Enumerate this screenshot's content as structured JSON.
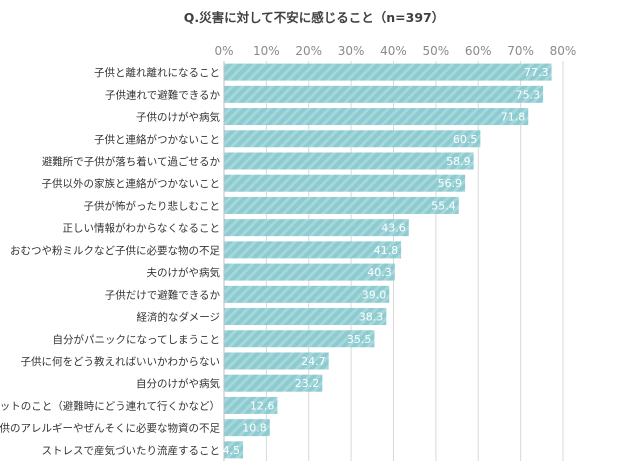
{
  "chart_data": {
    "type": "bar",
    "orientation": "horizontal",
    "title": "Q.災害に対して不安に感じること（n=397）",
    "categories": [
      "子供と離れ離れになること",
      "子供連れで避難できるか",
      "子供のけがや病気",
      "子供と連絡がつかないこと",
      "避難所で子供が落ち着いて過ごせるか",
      "子供以外の家族と連絡がつかないこと",
      "子供が怖がったり悲しむこと",
      "正しい情報がわからなくなること",
      "おむつや粉ミルクなど子供に必要な物の不足",
      "夫のけがや病気",
      "子供だけで避難できるか",
      "経済的なダメージ",
      "自分がパニックになってしまうこと",
      "子供に何をどう教えればいいかわからない",
      "自分のけがや病気",
      "ペットのこと（避難時にどう連れて行くかなど）",
      "子供のアレルギーやぜんそくに必要な物資の不足",
      "ストレスで産気づいたり流産すること"
    ],
    "values": [
      77.3,
      75.3,
      71.8,
      60.5,
      58.9,
      56.9,
      55.4,
      43.6,
      41.8,
      40.3,
      39.0,
      38.3,
      35.5,
      24.7,
      23.2,
      12.6,
      10.8,
      4.5
    ],
    "value_labels": [
      "77.3",
      "75.3",
      "71.8",
      "60.5",
      "58.9",
      "56.9",
      "55.4",
      "43.6",
      "41.8",
      "40.3",
      "39.0",
      "38.3",
      "35.5",
      "24.7",
      "23.2",
      "12.6",
      "10.8",
      "4.5"
    ],
    "xlim": [
      0,
      80
    ],
    "x_ticks": [
      0,
      10,
      20,
      30,
      40,
      50,
      60,
      70,
      80
    ],
    "x_tick_labels": [
      "0%",
      "10%",
      "20%",
      "30%",
      "40%",
      "50%",
      "60%",
      "70%",
      "80%"
    ],
    "xlabel": "",
    "ylabel": "",
    "grid": true,
    "legend": "none",
    "colors": {
      "bar": "#8ccbd0",
      "bar_stripe": "#a6d7db",
      "value_text": "#ffffff"
    }
  }
}
